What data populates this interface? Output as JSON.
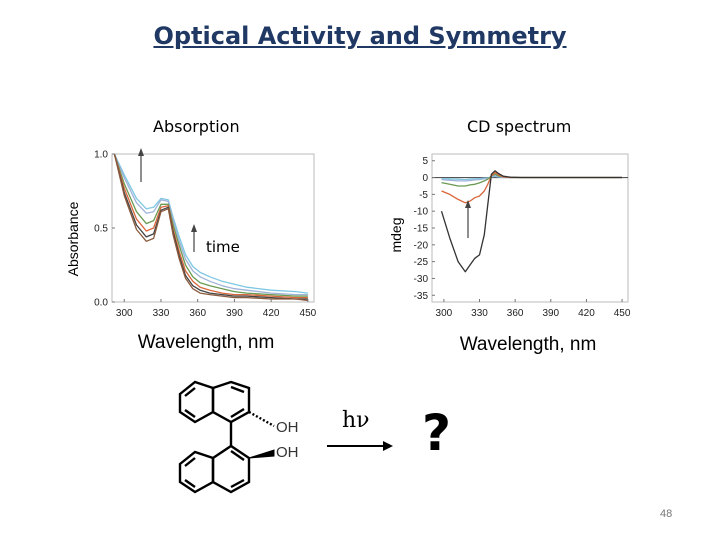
{
  "slide": {
    "title": "Optical Activity and Symmetry",
    "page_number": "48"
  },
  "absorption_panel": {
    "label": "Absorption",
    "annotation": "time"
  },
  "cd_panel": {
    "label": "CD spectrum"
  },
  "reaction": {
    "oh_top": "OH",
    "oh_bottom": "OH",
    "photon": "hν",
    "result": "?"
  },
  "chart_data": [
    {
      "type": "line",
      "title": "Absorption",
      "xlabel": "Wavelength, nm",
      "ylabel": "Absorbance",
      "xlim": [
        290,
        455
      ],
      "ylim": [
        0,
        1.0
      ],
      "xticks": [
        300,
        330,
        360,
        390,
        420,
        450
      ],
      "yticks": [
        "0.0",
        "0.5",
        "1.0"
      ],
      "x": [
        292,
        300,
        310,
        318,
        324,
        330,
        336,
        340,
        345,
        350,
        356,
        362,
        370,
        380,
        390,
        400,
        420,
        440,
        450
      ],
      "series": [
        {
          "color": "#7ec8e3",
          "values": [
            1.0,
            0.86,
            0.7,
            0.63,
            0.64,
            0.7,
            0.69,
            0.57,
            0.44,
            0.32,
            0.24,
            0.2,
            0.17,
            0.14,
            0.12,
            0.1,
            0.08,
            0.07,
            0.06
          ]
        },
        {
          "color": "#9fb2d8",
          "values": [
            1.0,
            0.84,
            0.67,
            0.6,
            0.61,
            0.69,
            0.68,
            0.55,
            0.41,
            0.29,
            0.21,
            0.17,
            0.14,
            0.11,
            0.09,
            0.08,
            0.06,
            0.05,
            0.05
          ]
        },
        {
          "color": "#6a9a52",
          "values": [
            1.0,
            0.8,
            0.61,
            0.53,
            0.55,
            0.66,
            0.66,
            0.52,
            0.38,
            0.25,
            0.17,
            0.13,
            0.11,
            0.09,
            0.07,
            0.06,
            0.05,
            0.04,
            0.04
          ]
        },
        {
          "color": "#d9663a",
          "values": [
            1.0,
            0.77,
            0.56,
            0.48,
            0.5,
            0.64,
            0.65,
            0.49,
            0.34,
            0.21,
            0.14,
            0.1,
            0.08,
            0.06,
            0.05,
            0.05,
            0.04,
            0.03,
            0.03
          ]
        },
        {
          "color": "#444444",
          "values": [
            1.0,
            0.74,
            0.52,
            0.44,
            0.46,
            0.62,
            0.64,
            0.47,
            0.31,
            0.18,
            0.11,
            0.08,
            0.06,
            0.05,
            0.04,
            0.04,
            0.03,
            0.02,
            0.02
          ]
        },
        {
          "color": "#8a5a3c",
          "values": [
            1.0,
            0.72,
            0.49,
            0.41,
            0.43,
            0.61,
            0.63,
            0.45,
            0.29,
            0.16,
            0.09,
            0.06,
            0.05,
            0.04,
            0.03,
            0.03,
            0.02,
            0.02,
            0.01
          ]
        }
      ]
    },
    {
      "type": "line",
      "title": "CD spectrum",
      "xlabel": "Wavelength, nm",
      "ylabel": "mdeg",
      "xlim": [
        290,
        455
      ],
      "ylim": [
        -37,
        7
      ],
      "xticks": [
        300,
        330,
        360,
        390,
        420,
        450
      ],
      "yticks": [
        5,
        0,
        -5,
        -10,
        -15,
        -20,
        -25,
        -30,
        -35
      ],
      "x": [
        298,
        305,
        312,
        318,
        322,
        326,
        330,
        334,
        337,
        340,
        343,
        346,
        350,
        356,
        365,
        380,
        400,
        420,
        440,
        450
      ],
      "series": [
        {
          "color": "#7ec8e3",
          "values": [
            -0.3,
            -0.4,
            -0.5,
            -0.6,
            -0.5,
            -0.4,
            -0.3,
            -0.2,
            -0.1,
            0.2,
            0.4,
            0.2,
            0.0,
            0.0,
            0.0,
            0.0,
            0.0,
            0.0,
            0.0,
            0.0
          ]
        },
        {
          "color": "#9fb2d8",
          "values": [
            -0.6,
            -0.8,
            -1.0,
            -1.0,
            -0.9,
            -0.7,
            -0.6,
            -0.4,
            -0.2,
            0.3,
            0.6,
            0.3,
            0.1,
            0.0,
            0.0,
            0.0,
            0.0,
            0.0,
            0.0,
            0.0
          ]
        },
        {
          "color": "#6a9a52",
          "values": [
            -1.5,
            -2.0,
            -2.5,
            -2.5,
            -2.2,
            -2.0,
            -1.6,
            -1.0,
            -0.5,
            0.5,
            1.0,
            0.5,
            0.2,
            0.0,
            0.0,
            0.0,
            0.0,
            0.0,
            0.0,
            0.0
          ]
        },
        {
          "color": "#d9663a",
          "values": [
            -4.0,
            -5.0,
            -6.5,
            -7.5,
            -7.0,
            -6.0,
            -5.5,
            -4.0,
            -2.0,
            0.5,
            1.5,
            0.8,
            0.2,
            0.0,
            0.0,
            0.0,
            0.0,
            0.0,
            0.0,
            0.0
          ]
        },
        {
          "color": "#333333",
          "values": [
            -10.0,
            -18.0,
            -25.0,
            -28.0,
            -26.0,
            -24.0,
            -23.0,
            -17.0,
            -8.0,
            1.0,
            2.0,
            1.2,
            0.4,
            0.1,
            0.0,
            0.0,
            0.0,
            0.0,
            0.0,
            0.0
          ]
        }
      ]
    }
  ]
}
